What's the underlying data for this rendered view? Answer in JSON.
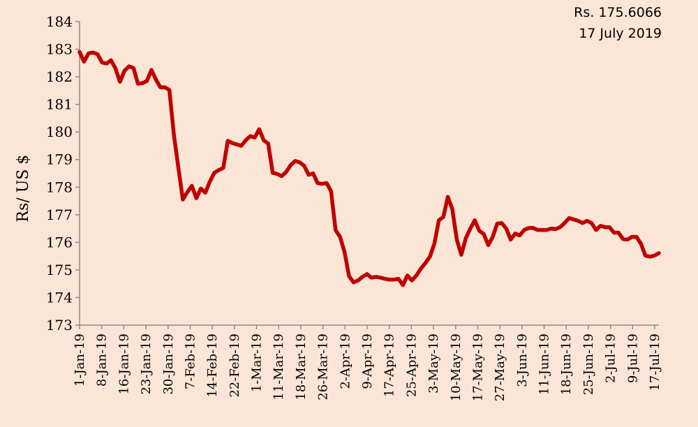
{
  "chart_data": {
    "type": "line",
    "title": "",
    "xlabel": "",
    "ylabel": "Rs/ US $",
    "ylim": [
      173,
      184
    ],
    "yticks": [
      173,
      174,
      175,
      176,
      177,
      178,
      179,
      180,
      181,
      182,
      183,
      184
    ],
    "xtick_labels": [
      "1-Jan-19",
      "8-Jan-19",
      "16-Jan-19",
      "23-Jan-19",
      "30-Jan-19",
      "7-Feb-19",
      "14-Feb-19",
      "22-Feb-19",
      "1-Mar-19",
      "11-Mar-19",
      "18-Mar-19",
      "26-Mar-19",
      "2-Apr-19",
      "9-Apr-19",
      "17-Apr-19",
      "25-Apr-19",
      "3-May-19",
      "10-May-19",
      "17-May-19",
      "27-May-19",
      "3-Jun-19",
      "11-Jun-19",
      "18-Jun-19",
      "25-Jun-19",
      "2-Jul-19",
      "9-Jul-19",
      "17-Jul-19"
    ],
    "grid": false,
    "line_color": "#c00000",
    "annotation": [
      "Rs. 175.6066",
      "17 July 2019"
    ],
    "series": [
      {
        "values": [
          182.9,
          182.55,
          182.85,
          182.88,
          182.82,
          182.52,
          182.48,
          182.6,
          182.3,
          181.82,
          182.22,
          182.38,
          182.32,
          181.75,
          181.77,
          181.85,
          182.25,
          181.9,
          181.62,
          181.62,
          181.52,
          179.9,
          178.7,
          177.55,
          177.82,
          178.05,
          177.6,
          177.95,
          177.8,
          178.2,
          178.52,
          178.62,
          178.7,
          179.68,
          179.6,
          179.55,
          179.5,
          179.7,
          179.85,
          179.8,
          180.1,
          179.7,
          179.58,
          178.52,
          178.48,
          178.4,
          178.55,
          178.8,
          178.95,
          178.9,
          178.78,
          178.45,
          178.5,
          178.15,
          178.12,
          178.15,
          177.85,
          176.45,
          176.2,
          175.65,
          174.78,
          174.55,
          174.62,
          174.75,
          174.85,
          174.72,
          174.75,
          174.72,
          174.68,
          174.65,
          174.65,
          174.68,
          174.45,
          174.8,
          174.62,
          174.8,
          175.05,
          175.25,
          175.48,
          175.95,
          176.8,
          176.92,
          177.65,
          177.2,
          176.1,
          175.55,
          176.15,
          176.5,
          176.8,
          176.42,
          176.3,
          175.9,
          176.2,
          176.68,
          176.7,
          176.5,
          176.1,
          176.32,
          176.25,
          176.45,
          176.52,
          176.52,
          176.45,
          176.45,
          176.45,
          176.5,
          176.48,
          176.55,
          176.7,
          176.88,
          176.83,
          176.78,
          176.7,
          176.78,
          176.7,
          176.45,
          176.6,
          176.55,
          176.55,
          176.35,
          176.35,
          176.12,
          176.1,
          176.2,
          176.2,
          175.95,
          175.52,
          175.48,
          175.52,
          175.61
        ]
      }
    ]
  }
}
